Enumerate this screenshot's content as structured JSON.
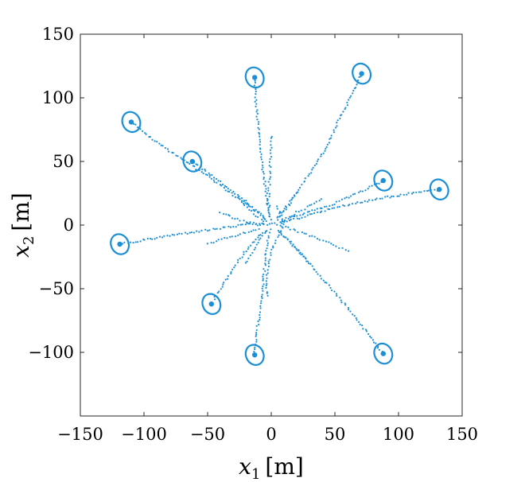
{
  "chart_data": {
    "type": "scatter",
    "xlabel": "x_1 [m]",
    "ylabel": "x_2 [m]",
    "xlabel_main": "x",
    "xlabel_sub": "1",
    "xlabel_unit": "[m]",
    "ylabel_main": "x",
    "ylabel_sub": "2",
    "ylabel_unit": "[m]",
    "xlim": [
      -150,
      150
    ],
    "ylim": [
      -150,
      150
    ],
    "xticks": [
      -150,
      -100,
      -50,
      0,
      50,
      100,
      150
    ],
    "yticks": [
      -100,
      -50,
      0,
      50,
      100,
      150
    ],
    "xtick_labels": [
      "−150",
      "−100",
      "−50",
      "0",
      "50",
      "100",
      "150"
    ],
    "ytick_labels": [
      "−100",
      "−50",
      "0",
      "50",
      "100",
      "150"
    ],
    "grid": false,
    "color": "#1b8fd6",
    "targets": [
      {
        "x": -13,
        "y": 116
      },
      {
        "x": 71,
        "y": 119
      },
      {
        "x": -110,
        "y": 81
      },
      {
        "x": -62,
        "y": 50
      },
      {
        "x": 88,
        "y": 35
      },
      {
        "x": 132,
        "y": 28
      },
      {
        "x": -119,
        "y": -15
      },
      {
        "x": -47,
        "y": -62
      },
      {
        "x": -13,
        "y": -102
      },
      {
        "x": 88,
        "y": -101
      }
    ],
    "trajectories": [
      {
        "points": [
          [
            -13,
            116
          ],
          [
            -12,
            95
          ],
          [
            -10,
            75
          ],
          [
            -8,
            55
          ],
          [
            -6,
            40
          ],
          [
            -4,
            25
          ],
          [
            -2,
            12
          ],
          [
            0,
            3
          ]
        ]
      },
      {
        "points": [
          [
            71,
            119
          ],
          [
            62,
            100
          ],
          [
            52,
            80
          ],
          [
            43,
            60
          ],
          [
            33,
            45
          ],
          [
            23,
            30
          ],
          [
            12,
            15
          ],
          [
            3,
            4
          ]
        ]
      },
      {
        "points": [
          [
            -110,
            81
          ],
          [
            -90,
            65
          ],
          [
            -70,
            52
          ],
          [
            -52,
            40
          ],
          [
            -36,
            28
          ],
          [
            -20,
            17
          ],
          [
            -8,
            8
          ],
          [
            -2,
            2
          ]
        ]
      },
      {
        "points": [
          [
            -62,
            50
          ],
          [
            -48,
            40
          ],
          [
            -35,
            30
          ],
          [
            -22,
            20
          ],
          [
            -10,
            10
          ],
          [
            -3,
            3
          ]
        ]
      },
      {
        "points": [
          [
            88,
            35
          ],
          [
            70,
            26
          ],
          [
            50,
            17
          ],
          [
            32,
            11
          ],
          [
            15,
            6
          ],
          [
            5,
            2
          ]
        ]
      },
      {
        "points": [
          [
            132,
            28
          ],
          [
            110,
            25
          ],
          [
            85,
            21
          ],
          [
            60,
            16
          ],
          [
            40,
            11
          ],
          [
            20,
            5
          ],
          [
            6,
            1
          ]
        ]
      },
      {
        "points": [
          [
            -119,
            -15
          ],
          [
            -95,
            -11
          ],
          [
            -72,
            -7
          ],
          [
            -50,
            -4
          ],
          [
            -30,
            -1
          ],
          [
            -12,
            1
          ],
          [
            -3,
            1
          ]
        ]
      },
      {
        "points": [
          [
            -47,
            -62
          ],
          [
            -38,
            -47
          ],
          [
            -29,
            -33
          ],
          [
            -20,
            -20
          ],
          [
            -11,
            -10
          ],
          [
            -3,
            -3
          ]
        ]
      },
      {
        "points": [
          [
            -13,
            -102
          ],
          [
            -11,
            -82
          ],
          [
            -8,
            -60
          ],
          [
            -6,
            -40
          ],
          [
            -4,
            -22
          ],
          [
            -2,
            -8
          ],
          [
            0,
            -2
          ]
        ]
      },
      {
        "points": [
          [
            88,
            -101
          ],
          [
            75,
            -84
          ],
          [
            60,
            -65
          ],
          [
            44,
            -46
          ],
          [
            28,
            -28
          ],
          [
            14,
            -13
          ],
          [
            4,
            -3
          ]
        ]
      }
    ],
    "loose_paths": [
      {
        "points": [
          [
            0,
            70
          ],
          [
            -1,
            45
          ],
          [
            -2,
            20
          ],
          [
            -1,
            5
          ]
        ]
      },
      {
        "points": [
          [
            5,
            15
          ],
          [
            8,
            5
          ],
          [
            10,
            0
          ],
          [
            5,
            -10
          ],
          [
            0,
            -20
          ],
          [
            -3,
            -35
          ],
          [
            -4,
            -50
          ],
          [
            -3,
            -58
          ]
        ]
      },
      {
        "points": [
          [
            -40,
            10
          ],
          [
            -28,
            5
          ],
          [
            -18,
            2
          ],
          [
            -8,
            0
          ],
          [
            5,
            2
          ]
        ]
      },
      {
        "points": [
          [
            40,
            20
          ],
          [
            30,
            15
          ],
          [
            20,
            10
          ],
          [
            10,
            4
          ],
          [
            3,
            0
          ]
        ]
      },
      {
        "points": [
          [
            60,
            -20
          ],
          [
            45,
            -14
          ],
          [
            30,
            -8
          ],
          [
            15,
            -3
          ],
          [
            5,
            0
          ]
        ]
      },
      {
        "points": [
          [
            -50,
            -15
          ],
          [
            -35,
            -10
          ],
          [
            -20,
            -6
          ],
          [
            -8,
            -2
          ]
        ]
      },
      {
        "points": [
          [
            -25,
            20
          ],
          [
            -18,
            12
          ],
          [
            -10,
            6
          ],
          [
            -4,
            2
          ]
        ]
      },
      {
        "points": [
          [
            20,
            25
          ],
          [
            14,
            16
          ],
          [
            8,
            8
          ],
          [
            3,
            3
          ]
        ]
      },
      {
        "points": [
          [
            30,
            -30
          ],
          [
            20,
            -18
          ],
          [
            12,
            -10
          ],
          [
            4,
            -4
          ]
        ]
      },
      {
        "points": [
          [
            -20,
            -30
          ],
          [
            -14,
            -20
          ],
          [
            -8,
            -10
          ],
          [
            -3,
            -3
          ]
        ]
      }
    ]
  }
}
